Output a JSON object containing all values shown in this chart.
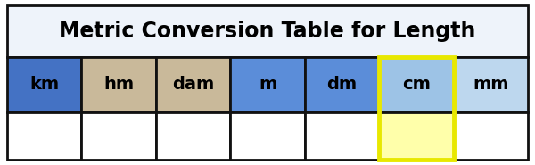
{
  "title": "Metric Conversion Table for Length",
  "title_fontsize": 17,
  "headers": [
    "km",
    "hm",
    "dam",
    "m",
    "dm",
    "cm",
    "mm"
  ],
  "header_colors": [
    "#4472C4",
    "#C9B99A",
    "#C9B99A",
    "#5B8DD9",
    "#5B8DD9",
    "#9DC3E6",
    "#BDD7EE"
  ],
  "body_colors": [
    "#FFFFFF",
    "#FFFFFF",
    "#FFFFFF",
    "#FFFFFF",
    "#FFFFFF",
    "#FFFFAA",
    "#FFFFFF"
  ],
  "highlight_col": 5,
  "highlight_border_color": "#E8E800",
  "table_border_color": "#111111",
  "title_bg_color": "#EEF3FA",
  "outer_bg_color": "#FFFFFF",
  "border_linewidth": 2.0,
  "highlight_linewidth": 3.5,
  "n_cols": 7
}
